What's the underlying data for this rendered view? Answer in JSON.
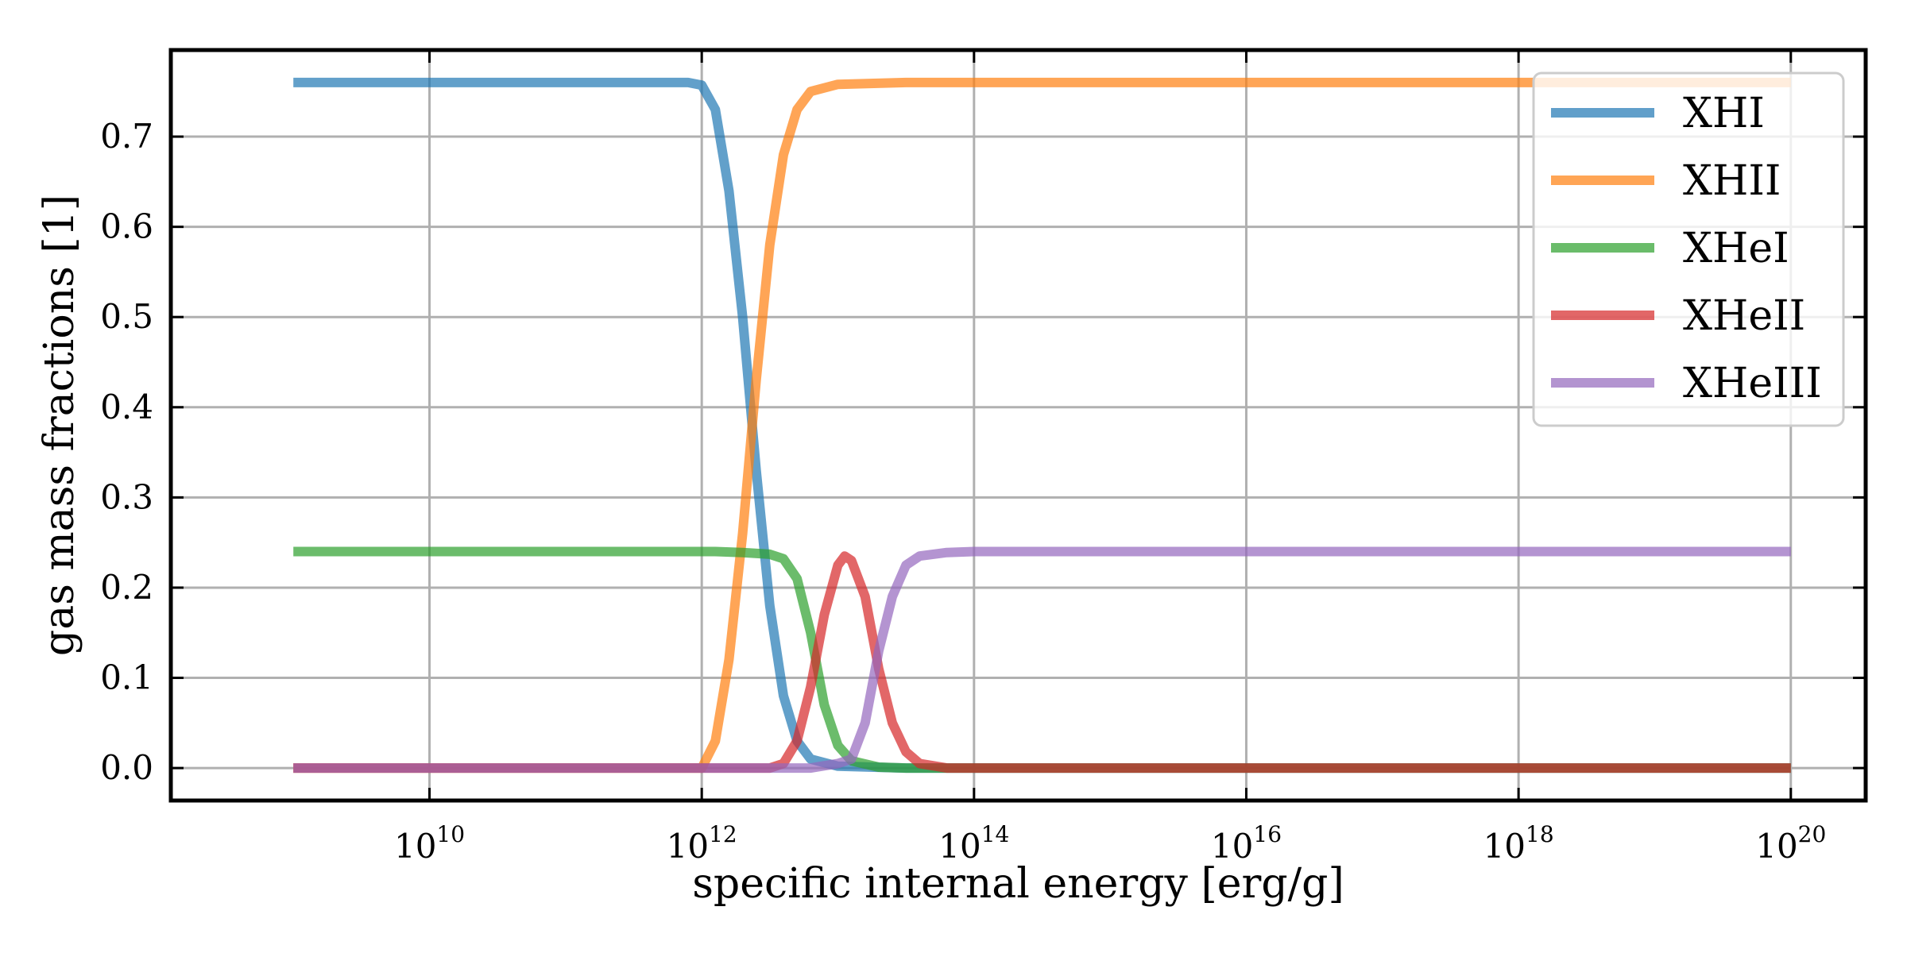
{
  "chart_data": {
    "type": "line",
    "title": "",
    "xlabel": "specific internal energy [erg/g]",
    "ylabel": "gas mass fractions [1]",
    "xscale": "log",
    "xlim_log10": [
      8.1,
      20.55
    ],
    "ylim": [
      -0.036,
      0.796
    ],
    "grid": true,
    "legend_position": "upper right",
    "x_ticks": [
      {
        "base": "10",
        "exp": "10",
        "log10": 10
      },
      {
        "base": "10",
        "exp": "12",
        "log10": 12
      },
      {
        "base": "10",
        "exp": "14",
        "log10": 14
      },
      {
        "base": "10",
        "exp": "16",
        "log10": 16
      },
      {
        "base": "10",
        "exp": "18",
        "log10": 18
      },
      {
        "base": "10",
        "exp": "20",
        "log10": 20
      }
    ],
    "y_ticks": [
      "0.0",
      "0.1",
      "0.2",
      "0.3",
      "0.4",
      "0.5",
      "0.6",
      "0.7"
    ],
    "y_tick_values": [
      0.0,
      0.1,
      0.2,
      0.3,
      0.4,
      0.5,
      0.6,
      0.7
    ],
    "series": [
      {
        "name": "XHI",
        "color": "#1f77b4",
        "points": [
          [
            9,
            0.76
          ],
          [
            11.9,
            0.76
          ],
          [
            12.0,
            0.757
          ],
          [
            12.1,
            0.73
          ],
          [
            12.2,
            0.64
          ],
          [
            12.3,
            0.5
          ],
          [
            12.4,
            0.33
          ],
          [
            12.5,
            0.18
          ],
          [
            12.6,
            0.08
          ],
          [
            12.7,
            0.03
          ],
          [
            12.8,
            0.01
          ],
          [
            13.0,
            0.002
          ],
          [
            13.5,
            0.0
          ],
          [
            20,
            0.0
          ]
        ]
      },
      {
        "name": "XHII",
        "color": "#ff7f0e",
        "points": [
          [
            9,
            0.0
          ],
          [
            12.0,
            0.0
          ],
          [
            12.1,
            0.03
          ],
          [
            12.2,
            0.12
          ],
          [
            12.3,
            0.26
          ],
          [
            12.4,
            0.43
          ],
          [
            12.5,
            0.58
          ],
          [
            12.6,
            0.68
          ],
          [
            12.7,
            0.73
          ],
          [
            12.8,
            0.75
          ],
          [
            13.0,
            0.758
          ],
          [
            13.5,
            0.76
          ],
          [
            20,
            0.76
          ]
        ]
      },
      {
        "name": "XHeI",
        "color": "#2ca02c",
        "points": [
          [
            9,
            0.24
          ],
          [
            12.1,
            0.24
          ],
          [
            12.3,
            0.239
          ],
          [
            12.5,
            0.237
          ],
          [
            12.6,
            0.232
          ],
          [
            12.7,
            0.21
          ],
          [
            12.8,
            0.15
          ],
          [
            12.9,
            0.07
          ],
          [
            13.0,
            0.025
          ],
          [
            13.1,
            0.008
          ],
          [
            13.3,
            0.001
          ],
          [
            13.5,
            0.0
          ],
          [
            20,
            0.0
          ]
        ]
      },
      {
        "name": "XHeII",
        "color": "#d62728",
        "points": [
          [
            9,
            0.0
          ],
          [
            12.5,
            0.0
          ],
          [
            12.6,
            0.005
          ],
          [
            12.7,
            0.03
          ],
          [
            12.8,
            0.09
          ],
          [
            12.9,
            0.17
          ],
          [
            13.0,
            0.225
          ],
          [
            13.05,
            0.235
          ],
          [
            13.1,
            0.23
          ],
          [
            13.2,
            0.19
          ],
          [
            13.3,
            0.11
          ],
          [
            13.4,
            0.05
          ],
          [
            13.5,
            0.018
          ],
          [
            13.6,
            0.005
          ],
          [
            13.8,
            0.0
          ],
          [
            20,
            0.0
          ]
        ]
      },
      {
        "name": "XHeIII",
        "color": "#9467bd",
        "points": [
          [
            9,
            0.0
          ],
          [
            12.8,
            0.0
          ],
          [
            13.0,
            0.005
          ],
          [
            13.1,
            0.01
          ],
          [
            13.2,
            0.05
          ],
          [
            13.3,
            0.13
          ],
          [
            13.4,
            0.19
          ],
          [
            13.5,
            0.225
          ],
          [
            13.6,
            0.235
          ],
          [
            13.8,
            0.239
          ],
          [
            14.0,
            0.24
          ],
          [
            20,
            0.24
          ]
        ]
      }
    ]
  }
}
